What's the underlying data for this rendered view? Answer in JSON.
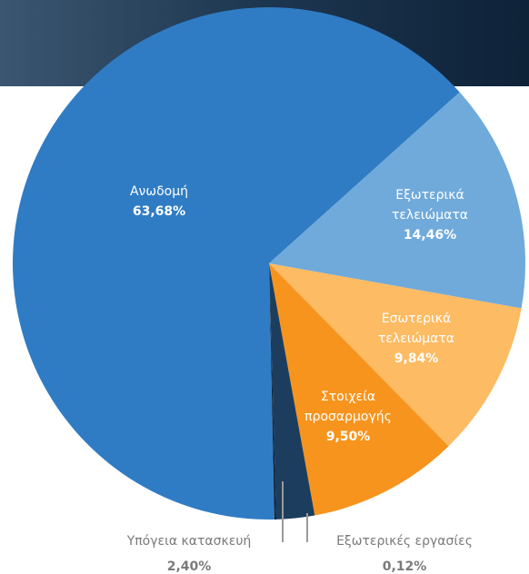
{
  "chart_data": {
    "type": "pie",
    "categories": [
      "Ανωδομή",
      "Εξωτερικά τελειώματα",
      "Εσωτερικά τελειώματα",
      "Στοιχεία προσαρμογής",
      "Υπόγεια κατασκευή",
      "Εξωτερικές εργασίες"
    ],
    "values": [
      63.68,
      14.46,
      9.84,
      9.5,
      2.4,
      0.12
    ],
    "value_labels": [
      "63,68%",
      "14,46%",
      "9,84%",
      "9,50%",
      "2,40%",
      "0,12%"
    ],
    "colors": [
      "#2f7cc4",
      "#70aadb",
      "#fdbb63",
      "#f7941d",
      "#1c3d5e",
      "#0f2236"
    ]
  }
}
